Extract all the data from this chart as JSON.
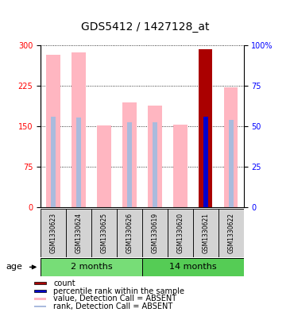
{
  "title": "GDS5412 / 1427128_at",
  "samples": [
    "GSM1330623",
    "GSM1330624",
    "GSM1330625",
    "GSM1330626",
    "GSM1330619",
    "GSM1330620",
    "GSM1330621",
    "GSM1330622"
  ],
  "values_absent": [
    282,
    287,
    152,
    195,
    188,
    153,
    null,
    222
  ],
  "rank_absent": [
    168,
    167,
    null,
    158,
    157,
    null,
    null,
    162
  ],
  "count_value": [
    null,
    null,
    null,
    null,
    null,
    null,
    293,
    null
  ],
  "percentile_rank": [
    null,
    null,
    null,
    null,
    null,
    null,
    168,
    null
  ],
  "ylim_left": [
    0,
    300
  ],
  "ylim_right": [
    0,
    100
  ],
  "yticks_left": [
    0,
    75,
    150,
    225,
    300
  ],
  "yticks_right": [
    0,
    25,
    50,
    75,
    100
  ],
  "groups": [
    {
      "label": "2 months",
      "indices": [
        0,
        1,
        2,
        3
      ],
      "color": "#77DD77"
    },
    {
      "label": "14 months",
      "indices": [
        4,
        5,
        6,
        7
      ],
      "color": "#55CC55"
    }
  ],
  "bar_width": 0.55,
  "rank_bar_width": 0.18,
  "color_count": "#AA0000",
  "color_percentile": "#0000CC",
  "color_value_absent": "#FFB6C1",
  "color_rank_absent": "#AABBDD",
  "background_color": "#ffffff",
  "sample_box_color": "#D3D3D3",
  "title_fontsize": 10,
  "tick_fontsize": 7,
  "sample_fontsize": 5.5,
  "legend_fontsize": 7,
  "age_fontsize": 8
}
